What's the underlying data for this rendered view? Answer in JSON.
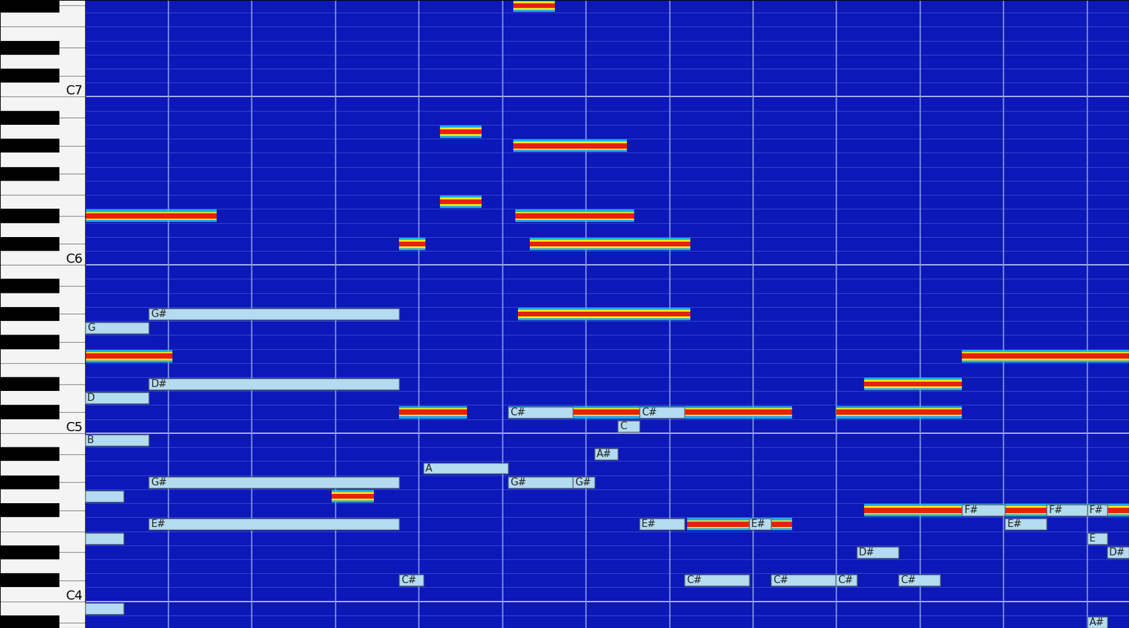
{
  "chart_data": {
    "type": "piano_roll",
    "xlim": [
      0,
      100
    ],
    "xticks": [
      0,
      8,
      16,
      24,
      32,
      40,
      48,
      56,
      64,
      72,
      80,
      88,
      96
    ],
    "ylim": [
      57.6,
      102.4
    ],
    "yticks": [
      {
        "value": 60,
        "label": "C4"
      },
      {
        "value": 72,
        "label": "C5"
      },
      {
        "value": 84,
        "label": "C6"
      },
      {
        "value": 96,
        "label": "C7"
      }
    ],
    "grid": true,
    "tick_labels": "y",
    "notes": [
      {
        "label": "G",
        "pitch": 79,
        "start": 0,
        "end": 6.1
      },
      {
        "label": "D",
        "pitch": 74,
        "start": 0,
        "end": 6.1
      },
      {
        "label": "B",
        "pitch": 71,
        "start": 0,
        "end": 6.1
      },
      {
        "label": null,
        "pitch": 67,
        "start": 0,
        "end": 3.7
      },
      {
        "label": null,
        "pitch": 64,
        "start": 0,
        "end": 3.7
      },
      {
        "label": null,
        "pitch": 59,
        "start": 0,
        "end": 3.7
      },
      {
        "label": "G#",
        "pitch": 80,
        "start": 6.1,
        "end": 30.1
      },
      {
        "label": "D#",
        "pitch": 75,
        "start": 6.1,
        "end": 30.1
      },
      {
        "label": "G#",
        "pitch": 68,
        "start": 6.1,
        "end": 30.1
      },
      {
        "label": "E#",
        "pitch": 65,
        "start": 6.1,
        "end": 30.1
      },
      {
        "label": "C#",
        "pitch": 61,
        "start": 30.1,
        "end": 32.4
      },
      {
        "label": "A",
        "pitch": 69,
        "start": 32.4,
        "end": 40.5
      },
      {
        "label": "C#",
        "pitch": 73,
        "start": 40.5,
        "end": 46.7
      },
      {
        "label": "G#",
        "pitch": 68,
        "start": 40.5,
        "end": 46.7
      },
      {
        "label": "G#",
        "pitch": 68,
        "start": 46.7,
        "end": 48.8
      },
      {
        "label": "A#",
        "pitch": 70,
        "start": 48.8,
        "end": 51.0
      },
      {
        "label": "C",
        "pitch": 72,
        "start": 51.0,
        "end": 53.1
      },
      {
        "label": "C#",
        "pitch": 73,
        "start": 53.1,
        "end": 57.4
      },
      {
        "label": "E#",
        "pitch": 65,
        "start": 53.1,
        "end": 57.4
      },
      {
        "label": "C#",
        "pitch": 61,
        "start": 57.4,
        "end": 63.6
      },
      {
        "label": "E#",
        "pitch": 65,
        "start": 63.6,
        "end": 65.7
      },
      {
        "label": "C#",
        "pitch": 61,
        "start": 65.7,
        "end": 71.9
      },
      {
        "label": "C#",
        "pitch": 61,
        "start": 71.9,
        "end": 73.9
      },
      {
        "label": "D#",
        "pitch": 63,
        "start": 73.9,
        "end": 77.9
      },
      {
        "label": "C#",
        "pitch": 61,
        "start": 77.9,
        "end": 81.9
      },
      {
        "label": "F#",
        "pitch": 66,
        "start": 84.0,
        "end": 88.1
      },
      {
        "label": "E#",
        "pitch": 65,
        "start": 88.1,
        "end": 92.1
      },
      {
        "label": "F#",
        "pitch": 66,
        "start": 92.1,
        "end": 96.0
      },
      {
        "label": "F#",
        "pitch": 66,
        "start": 96.0,
        "end": 97.9
      },
      {
        "label": "E",
        "pitch": 64,
        "start": 96.0,
        "end": 97.9
      },
      {
        "label": "D#",
        "pitch": 63,
        "start": 97.9,
        "end": 100
      },
      {
        "label": "A#",
        "pitch": 58,
        "start": 96.0,
        "end": 97.9
      }
    ],
    "energy": [
      {
        "pitch": 73,
        "start": 30.1,
        "end": 36.6
      },
      {
        "pitch": 73,
        "start": 40.5,
        "end": 67.7
      },
      {
        "pitch": 73,
        "start": 72.0,
        "end": 84.0
      },
      {
        "pitch": 75,
        "start": 74.6,
        "end": 84.0
      },
      {
        "pitch": 77,
        "start": 84.0,
        "end": 100
      },
      {
        "pitch": 80,
        "start": 41.5,
        "end": 58.0
      },
      {
        "pitch": 85,
        "start": 42.6,
        "end": 58.0
      },
      {
        "pitch": 87,
        "start": 41.2,
        "end": 52.6
      },
      {
        "pitch": 85,
        "start": 30.1,
        "end": 32.6
      },
      {
        "pitch": 88,
        "start": 34.0,
        "end": 38.0
      },
      {
        "pitch": 65,
        "start": 57.7,
        "end": 67.7
      },
      {
        "pitch": 66,
        "start": 74.6,
        "end": 100
      },
      {
        "pitch": 87,
        "start": 0,
        "end": 12.6
      },
      {
        "pitch": 77,
        "start": 0,
        "end": 8.4
      },
      {
        "pitch": 67,
        "start": 23.6,
        "end": 27.7
      },
      {
        "pitch": 92,
        "start": 41.0,
        "end": 51.9
      },
      {
        "pitch": 93,
        "start": 34.0,
        "end": 38.0
      },
      {
        "pitch": 102,
        "start": 41.0,
        "end": 45.0
      }
    ]
  }
}
